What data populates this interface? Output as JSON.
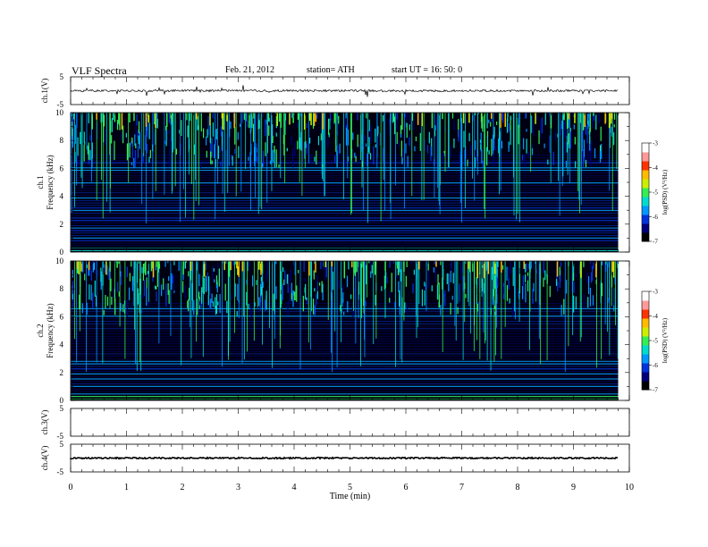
{
  "header": {
    "title": "VLF  Spectra",
    "date": "Feb. 21, 2012",
    "station": "station= ATH",
    "start": "start  UT  =   16: 50: 0"
  },
  "chart_data": {
    "type": "heatmap",
    "xlabel": "Time  (min)",
    "xlim": [
      0,
      10
    ],
    "x_ticks": [
      "0",
      "1",
      "2",
      "3",
      "4",
      "5",
      "6",
      "7",
      "8",
      "9",
      "10"
    ],
    "data_end_min": 9.8,
    "panels": [
      {
        "id": "ch1-waveform",
        "type": "line",
        "ylabel": "ch.1(V)",
        "ylim": [
          -5,
          5
        ],
        "y_ticks": [
          "5",
          "-5"
        ],
        "baseline": 0
      },
      {
        "id": "ch1-spectrogram",
        "type": "heatmap",
        "ylabel": "ch.1\nFrequency (kHz)",
        "ylim": [
          0,
          10
        ],
        "y_ticks": [
          "0",
          "2",
          "4",
          "6",
          "8",
          "10"
        ],
        "colorbar": {
          "label": "log(PSD) (V²/Hz)",
          "range": [
            -7,
            -3
          ],
          "ticks": [
            "-3",
            "-4",
            "-5",
            "-6",
            "-7"
          ]
        }
      },
      {
        "id": "ch2-spectrogram",
        "type": "heatmap",
        "ylabel": "ch.2\nFrequency (kHz)",
        "ylim": [
          0,
          10
        ],
        "y_ticks": [
          "0",
          "2",
          "4",
          "6",
          "8",
          "10"
        ],
        "colorbar": {
          "label": "log(PSD) (V²/Hz)",
          "range": [
            -7,
            -3
          ],
          "ticks": [
            "-3",
            "-4",
            "-5",
            "-6",
            "-7"
          ]
        }
      },
      {
        "id": "ch3-waveform",
        "type": "line",
        "ylabel": "ch.3(V)",
        "ylim": [
          -5,
          5
        ],
        "y_ticks": [
          "5",
          "-5"
        ],
        "baseline": null
      },
      {
        "id": "ch4-waveform",
        "type": "line",
        "ylabel": "ch.4(V)",
        "ylim": [
          -5,
          5
        ],
        "y_ticks": [
          "5",
          "-5"
        ],
        "baseline": 0
      }
    ],
    "colormap": [
      "#000000",
      "#00007a",
      "#0033dd",
      "#0099ff",
      "#00ddcc",
      "#33ee55",
      "#ccee00",
      "#ffbb00",
      "#ff3300",
      "#ff9999",
      "#ffffff"
    ]
  }
}
